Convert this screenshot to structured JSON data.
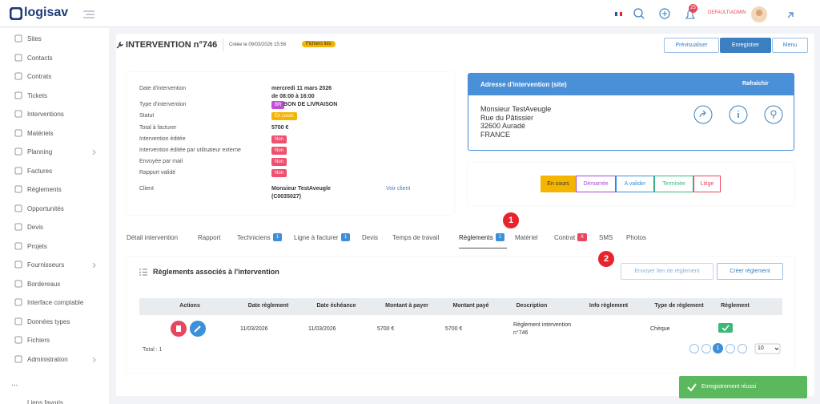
{
  "header": {
    "logo": "logisav",
    "notification_count": 25,
    "user": "DEFAULT\\ADMIN"
  },
  "sidebar": {
    "items": [
      {
        "label": "Sites"
      },
      {
        "label": "Contacts"
      },
      {
        "label": "Contrats"
      },
      {
        "label": "Tickets"
      },
      {
        "label": "Interventions"
      },
      {
        "label": "Matériels"
      },
      {
        "label": "Planning",
        "submenu": true
      },
      {
        "label": "Factures"
      },
      {
        "label": "Règlements"
      },
      {
        "label": "Opportunités"
      },
      {
        "label": "Devis"
      },
      {
        "label": "Projets"
      },
      {
        "label": "Fournisseurs",
        "submenu": true
      },
      {
        "label": "Bordereaux"
      },
      {
        "label": "Interface comptable"
      },
      {
        "label": "Données types"
      },
      {
        "label": "Fichiers"
      },
      {
        "label": "Administration",
        "submenu": true
      }
    ],
    "more": "...",
    "favorites": "Liens favoris"
  },
  "page": {
    "title": "INTERVENTION n°746",
    "created": "Créée le 09/03/2026 15:56",
    "files_tag": "Fichiers liés",
    "buttons": {
      "preview": "Prévisualiser",
      "save": "Enregistrer",
      "menu": "Menu"
    }
  },
  "details": {
    "rows": [
      {
        "label": "Date d'intervention",
        "value": "mercredi 11 mars 2026",
        "value_line2": "de 08:00 à 16:00"
      },
      {
        "label": "Type d'intervention",
        "tag": "BR",
        "tag_color": "#c04fd6",
        "value": "BON DE LIVRAISON"
      },
      {
        "label": "Statut",
        "badge": "En cours",
        "badge_color": "#f5b400"
      },
      {
        "label": "Total à facturer",
        "value": "5700 €"
      },
      {
        "label": "Intervention éditée",
        "badge": "Non",
        "badge_color": "#f0506e"
      },
      {
        "label": "Intervention éditée par utilisateur externe",
        "badge": "Non",
        "badge_color": "#f0506e"
      },
      {
        "label": "Envoyée par mail",
        "badge": "Non",
        "badge_color": "#f0506e"
      },
      {
        "label": "Rapport validé",
        "badge": "Non",
        "badge_color": "#f0506e"
      },
      {
        "label": "Client",
        "value": "Monsieur TestAveugle",
        "value_line2": "(C0035027)",
        "link": "Voir client"
      }
    ]
  },
  "address": {
    "title": "Adresse d'intervention (site)",
    "refresh": "Rafraîchir",
    "lines": [
      "Monsieur TestAveugle",
      "Rue du Pâtissier",
      "32600 Auradé",
      "FRANCE"
    ]
  },
  "statuses": [
    {
      "label": "En cours",
      "color": "#f5b400",
      "active": true
    },
    {
      "label": "Démarrée",
      "color": "#a64ad6"
    },
    {
      "label": "A valider",
      "color": "#3c8fd9"
    },
    {
      "label": "Terminée",
      "color": "#3cb878"
    },
    {
      "label": "Litige",
      "color": "#e8455e"
    }
  ],
  "tabs": {
    "active": 6,
    "items": [
      {
        "label": "Détail intervention"
      },
      {
        "label": "Rapport"
      },
      {
        "label": "Techniciens",
        "badge": 1
      },
      {
        "label": "Ligne à facturer",
        "badge": 1
      },
      {
        "label": "Devis"
      },
      {
        "label": "Temps de travail"
      },
      {
        "label": "Règlements",
        "badge": 1
      },
      {
        "label": "Matériel"
      },
      {
        "label": "Contrat",
        "badge": "X",
        "badge_color": "#e8455e"
      },
      {
        "label": "SMS"
      },
      {
        "label": "Photos"
      }
    ]
  },
  "markers": [
    1,
    2
  ],
  "payments": {
    "title": "Règlements associés à l'intervention",
    "send_link": "Envoyer lien de règlement",
    "create": "Créer règlement",
    "columns": [
      "Actions",
      "Date règlement",
      "Date échéance",
      "Montant à payer",
      "Montant payé",
      "Description",
      "Info règlement",
      "Type de règlement",
      "Règlement"
    ],
    "rows": [
      {
        "date": "11/03/2026",
        "due": "11/03/2026",
        "to_pay": "5700 €",
        "paid": "5700 €",
        "description": "Règlement intervention n°746",
        "type": "Chèque"
      }
    ],
    "total": "Total : 1",
    "page": 1,
    "page_size": 10
  },
  "toast": "Enregistrement réussi"
}
